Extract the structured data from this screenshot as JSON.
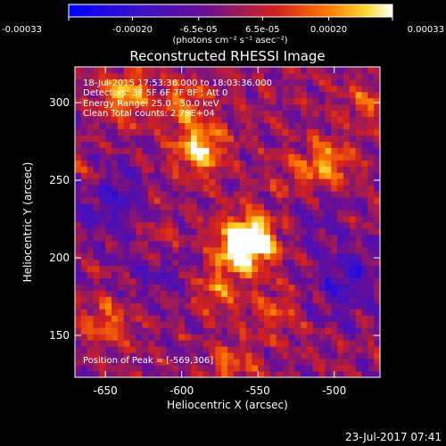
{
  "chart_data": {
    "type": "heatmap",
    "title": "Reconstructed RHESSI Image",
    "xlabel": "Heliocentric X (arcsec)",
    "ylabel": "Heliocentric Y (arcsec)",
    "xlim": [
      -670,
      -470
    ],
    "ylim": [
      123,
      323
    ],
    "x_ticks": [
      -650,
      -600,
      -550,
      -500
    ],
    "y_ticks": [
      150,
      200,
      250,
      300
    ],
    "colorbar": {
      "ticks": [
        "-0.00033",
        "-0.00020",
        "-6.5e-05",
        "6.5e-05",
        "0.00020",
        "0.00033"
      ],
      "tick_values": [
        -0.00033,
        -0.0002,
        -6.5e-05,
        6.5e-05,
        0.0002,
        0.00033
      ],
      "range": [
        -0.00033,
        0.00033
      ],
      "unit_label": "(photons cm⁻² s⁻¹ asec⁻²)"
    },
    "info_lines": [
      "18-Jul-2015 17:53:36.000 to 18:03:36.000",
      "Detectors: 3F 5F 6F 7F 8F  ; Att 0",
      "Energy Range: 25.0 - 50.0 keV",
      "Clean     Total counts: 2.79E+04"
    ],
    "peak_label": "Position of Peak = [-569,306]",
    "peak_position": [
      -569,
      306
    ],
    "sources": [
      {
        "x": -553,
        "y": 213,
        "intensity": 0.00033
      },
      {
        "x": -563,
        "y": 206,
        "intensity": 0.00027
      },
      {
        "x": -588,
        "y": 270,
        "intensity": 0.00028
      },
      {
        "x": -637,
        "y": 305,
        "intensity": 0.00024
      },
      {
        "x": -503,
        "y": 260,
        "intensity": 0.00022
      },
      {
        "x": -523,
        "y": 250,
        "intensity": 0.00015
      },
      {
        "x": -598,
        "y": 300,
        "intensity": 0.00018
      },
      {
        "x": -660,
        "y": 250,
        "intensity": 0.00016
      },
      {
        "x": -578,
        "y": 180,
        "intensity": 0.00015
      },
      {
        "x": -650,
        "y": 158,
        "intensity": 0.00016
      },
      {
        "x": -615,
        "y": 210,
        "intensity": 0.00013
      },
      {
        "x": -540,
        "y": 165,
        "intensity": 0.00012
      },
      {
        "x": -568,
        "y": 130,
        "intensity": 0.00014
      },
      {
        "x": -480,
        "y": 300,
        "intensity": 0.00012
      }
    ],
    "negative_regions": [
      {
        "x": -652,
        "y": 242,
        "intensity": -0.0002
      },
      {
        "x": -617,
        "y": 196,
        "intensity": -0.00012
      },
      {
        "x": -493,
        "y": 186,
        "intensity": -0.00015
      },
      {
        "x": -513,
        "y": 236,
        "intensity": -0.0001
      }
    ]
  },
  "footer": {
    "date": "23-Jul-2017 07:41"
  }
}
